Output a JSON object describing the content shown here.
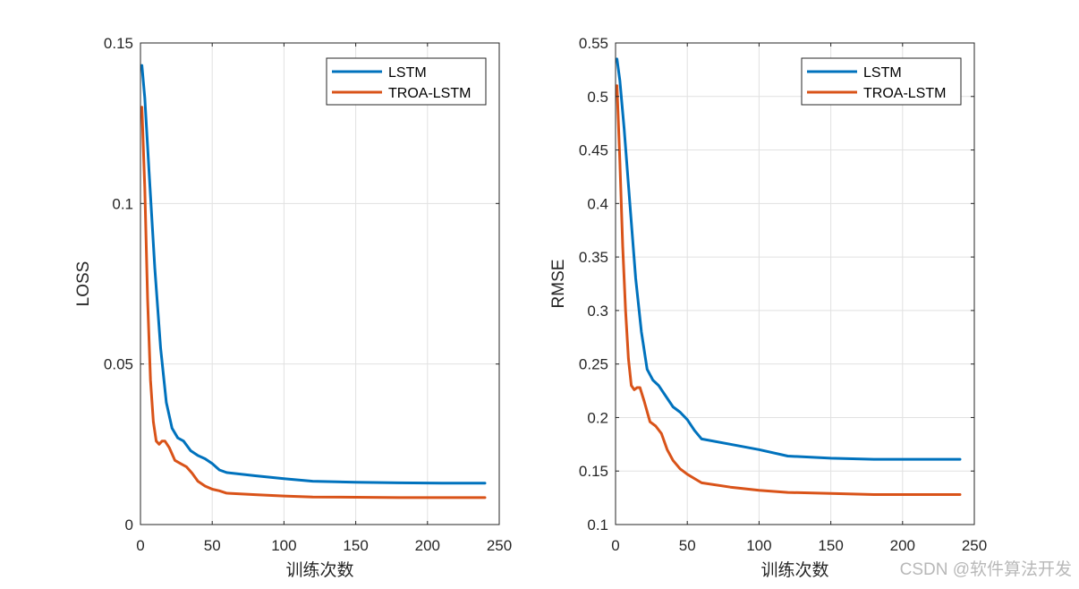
{
  "watermark": "CSDN @软件算法开发",
  "chart_data": [
    {
      "type": "line",
      "title": "",
      "xlabel": "训练次数",
      "ylabel": "LOSS",
      "xlim": [
        0,
        250
      ],
      "ylim": [
        0,
        0.15
      ],
      "xticks": [
        0,
        50,
        100,
        150,
        200,
        250
      ],
      "xtick_labels": [
        "0",
        "50",
        "100",
        "150",
        "200",
        "250"
      ],
      "yticks": [
        0,
        0.05,
        0.1,
        0.15
      ],
      "ytick_labels": [
        "0",
        "0.05",
        "0.1",
        "0.15"
      ],
      "grid": true,
      "legend": "top-right",
      "series": [
        {
          "name": "LSTM",
          "color": "#0072BD",
          "x": [
            1,
            3,
            6,
            10,
            14,
            18,
            22,
            26,
            30,
            35,
            40,
            45,
            50,
            55,
            60,
            80,
            100,
            120,
            150,
            180,
            210,
            240
          ],
          "y": [
            0.143,
            0.133,
            0.11,
            0.08,
            0.055,
            0.038,
            0.03,
            0.027,
            0.026,
            0.023,
            0.0215,
            0.0205,
            0.019,
            0.017,
            0.0162,
            0.0152,
            0.0143,
            0.0135,
            0.0132,
            0.013,
            0.0129,
            0.0129
          ]
        },
        {
          "name": "TROA-LSTM",
          "color": "#D95319",
          "x": [
            1,
            3,
            5,
            7,
            9,
            11,
            13,
            15,
            17,
            20,
            24,
            28,
            32,
            36,
            40,
            45,
            50,
            55,
            60,
            80,
            100,
            120,
            150,
            180,
            210,
            240
          ],
          "y": [
            0.13,
            0.105,
            0.07,
            0.045,
            0.032,
            0.026,
            0.025,
            0.026,
            0.026,
            0.024,
            0.02,
            0.019,
            0.018,
            0.016,
            0.0135,
            0.012,
            0.011,
            0.0105,
            0.0098,
            0.0093,
            0.0089,
            0.0086,
            0.0085,
            0.0084,
            0.0084,
            0.0084
          ]
        }
      ]
    },
    {
      "type": "line",
      "title": "",
      "xlabel": "训练次数",
      "ylabel": "RMSE",
      "xlim": [
        0,
        250
      ],
      "ylim": [
        0.1,
        0.55
      ],
      "xticks": [
        0,
        50,
        100,
        150,
        200,
        250
      ],
      "xtick_labels": [
        "0",
        "50",
        "100",
        "150",
        "200",
        "250"
      ],
      "yticks": [
        0.1,
        0.15,
        0.2,
        0.25,
        0.3,
        0.35,
        0.4,
        0.45,
        0.5,
        0.55
      ],
      "ytick_labels": [
        "0.1",
        "0.15",
        "0.2",
        "0.25",
        "0.3",
        "0.35",
        "0.4",
        "0.45",
        "0.5",
        "0.55"
      ],
      "grid": true,
      "legend": "top-right",
      "series": [
        {
          "name": "LSTM",
          "color": "#0072BD",
          "x": [
            1,
            3,
            6,
            10,
            14,
            18,
            22,
            26,
            30,
            35,
            40,
            45,
            50,
            55,
            60,
            80,
            100,
            120,
            150,
            180,
            210,
            240
          ],
          "y": [
            0.535,
            0.515,
            0.47,
            0.4,
            0.33,
            0.28,
            0.245,
            0.235,
            0.23,
            0.22,
            0.21,
            0.205,
            0.198,
            0.188,
            0.18,
            0.175,
            0.17,
            0.164,
            0.162,
            0.161,
            0.161,
            0.161
          ]
        },
        {
          "name": "TROA-LSTM",
          "color": "#D95319",
          "x": [
            1,
            3,
            5,
            7,
            9,
            11,
            13,
            15,
            17,
            20,
            24,
            28,
            32,
            36,
            40,
            45,
            50,
            55,
            60,
            80,
            100,
            120,
            150,
            180,
            210,
            240
          ],
          "y": [
            0.51,
            0.44,
            0.36,
            0.3,
            0.255,
            0.23,
            0.226,
            0.228,
            0.228,
            0.215,
            0.196,
            0.192,
            0.185,
            0.17,
            0.16,
            0.152,
            0.147,
            0.143,
            0.139,
            0.135,
            0.132,
            0.13,
            0.129,
            0.128,
            0.128,
            0.128
          ]
        }
      ]
    }
  ]
}
